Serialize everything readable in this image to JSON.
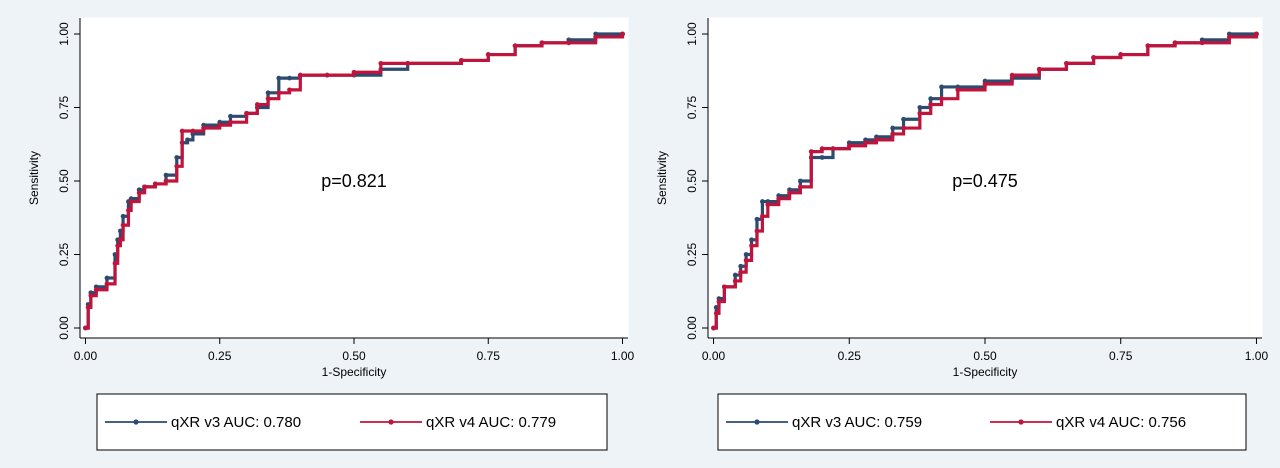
{
  "colors": {
    "v3": "#2c4b6e",
    "v4": "#c0143c",
    "panel_bg": "#eef3f7",
    "plot_bg": "#ffffff"
  },
  "chart_data": [
    {
      "type": "line",
      "xlabel": "1-Specificity",
      "ylabel": "Sensitivity",
      "xlim": [
        0,
        1
      ],
      "ylim": [
        0,
        1
      ],
      "xticks": [
        "0.00",
        "0.25",
        "0.50",
        "0.75",
        "1.00"
      ],
      "yticks": [
        "0.00",
        "0.25",
        "0.50",
        "0.75",
        "1.00"
      ],
      "grid": false,
      "legend_position": "bottom",
      "annotation": "p=0.821",
      "series": [
        {
          "name": "qXR v3 AUC: 0.780",
          "x": [
            0.0,
            0.005,
            0.01,
            0.02,
            0.04,
            0.055,
            0.06,
            0.065,
            0.07,
            0.08,
            0.085,
            0.1,
            0.11,
            0.13,
            0.15,
            0.17,
            0.18,
            0.19,
            0.2,
            0.22,
            0.25,
            0.27,
            0.3,
            0.32,
            0.34,
            0.36,
            0.38,
            0.4,
            0.45,
            0.5,
            0.55,
            0.6,
            0.7,
            0.75,
            0.8,
            0.85,
            0.9,
            0.95,
            1.0
          ],
          "y": [
            0.0,
            0.08,
            0.12,
            0.14,
            0.17,
            0.25,
            0.3,
            0.33,
            0.38,
            0.43,
            0.44,
            0.47,
            0.48,
            0.49,
            0.52,
            0.58,
            0.63,
            0.64,
            0.66,
            0.69,
            0.7,
            0.72,
            0.73,
            0.75,
            0.8,
            0.85,
            0.85,
            0.86,
            0.86,
            0.86,
            0.88,
            0.9,
            0.91,
            0.93,
            0.96,
            0.97,
            0.98,
            1.0,
            1.0
          ]
        },
        {
          "name": "qXR v4 AUC: 0.779",
          "x": [
            0.0,
            0.005,
            0.01,
            0.02,
            0.04,
            0.055,
            0.06,
            0.065,
            0.07,
            0.08,
            0.085,
            0.1,
            0.11,
            0.13,
            0.15,
            0.17,
            0.18,
            0.2,
            0.22,
            0.25,
            0.27,
            0.3,
            0.32,
            0.34,
            0.36,
            0.38,
            0.4,
            0.45,
            0.5,
            0.55,
            0.6,
            0.7,
            0.75,
            0.8,
            0.85,
            0.9,
            0.95,
            1.0
          ],
          "y": [
            0.0,
            0.07,
            0.11,
            0.13,
            0.15,
            0.22,
            0.28,
            0.3,
            0.35,
            0.4,
            0.43,
            0.46,
            0.48,
            0.49,
            0.5,
            0.55,
            0.67,
            0.67,
            0.68,
            0.69,
            0.7,
            0.73,
            0.76,
            0.78,
            0.8,
            0.81,
            0.86,
            0.86,
            0.87,
            0.9,
            0.9,
            0.91,
            0.93,
            0.96,
            0.97,
            0.97,
            0.99,
            1.0
          ]
        }
      ]
    },
    {
      "type": "line",
      "xlabel": "1-Specificity",
      "ylabel": "Sensitivity",
      "xlim": [
        0,
        1
      ],
      "ylim": [
        0,
        1
      ],
      "xticks": [
        "0.00",
        "0.25",
        "0.50",
        "0.75",
        "1.00"
      ],
      "yticks": [
        "0.00",
        "0.25",
        "0.50",
        "0.75",
        "1.00"
      ],
      "grid": false,
      "legend_position": "bottom",
      "annotation": "p=0.475",
      "series": [
        {
          "name": "qXR v3 AUC: 0.759",
          "x": [
            0.0,
            0.005,
            0.01,
            0.02,
            0.04,
            0.05,
            0.06,
            0.07,
            0.08,
            0.09,
            0.1,
            0.12,
            0.14,
            0.16,
            0.18,
            0.2,
            0.22,
            0.25,
            0.28,
            0.3,
            0.33,
            0.35,
            0.38,
            0.4,
            0.42,
            0.45,
            0.5,
            0.55,
            0.6,
            0.65,
            0.7,
            0.75,
            0.8,
            0.85,
            0.9,
            0.95,
            1.0
          ],
          "y": [
            0.0,
            0.07,
            0.1,
            0.14,
            0.18,
            0.21,
            0.25,
            0.3,
            0.37,
            0.43,
            0.43,
            0.45,
            0.47,
            0.5,
            0.58,
            0.58,
            0.61,
            0.63,
            0.64,
            0.65,
            0.68,
            0.71,
            0.75,
            0.78,
            0.82,
            0.82,
            0.84,
            0.85,
            0.88,
            0.9,
            0.92,
            0.93,
            0.96,
            0.97,
            0.98,
            1.0,
            1.0
          ]
        },
        {
          "name": "qXR v4 AUC: 0.756",
          "x": [
            0.0,
            0.005,
            0.01,
            0.02,
            0.04,
            0.05,
            0.06,
            0.07,
            0.08,
            0.09,
            0.1,
            0.12,
            0.14,
            0.16,
            0.18,
            0.2,
            0.22,
            0.25,
            0.28,
            0.3,
            0.33,
            0.35,
            0.38,
            0.4,
            0.42,
            0.45,
            0.5,
            0.55,
            0.6,
            0.65,
            0.7,
            0.75,
            0.8,
            0.85,
            0.9,
            0.95,
            1.0
          ],
          "y": [
            0.0,
            0.05,
            0.09,
            0.14,
            0.16,
            0.19,
            0.23,
            0.28,
            0.33,
            0.38,
            0.42,
            0.44,
            0.46,
            0.48,
            0.6,
            0.61,
            0.61,
            0.62,
            0.63,
            0.64,
            0.66,
            0.68,
            0.73,
            0.76,
            0.78,
            0.81,
            0.83,
            0.86,
            0.88,
            0.9,
            0.92,
            0.93,
            0.96,
            0.97,
            0.97,
            0.99,
            1.0
          ]
        }
      ]
    }
  ]
}
